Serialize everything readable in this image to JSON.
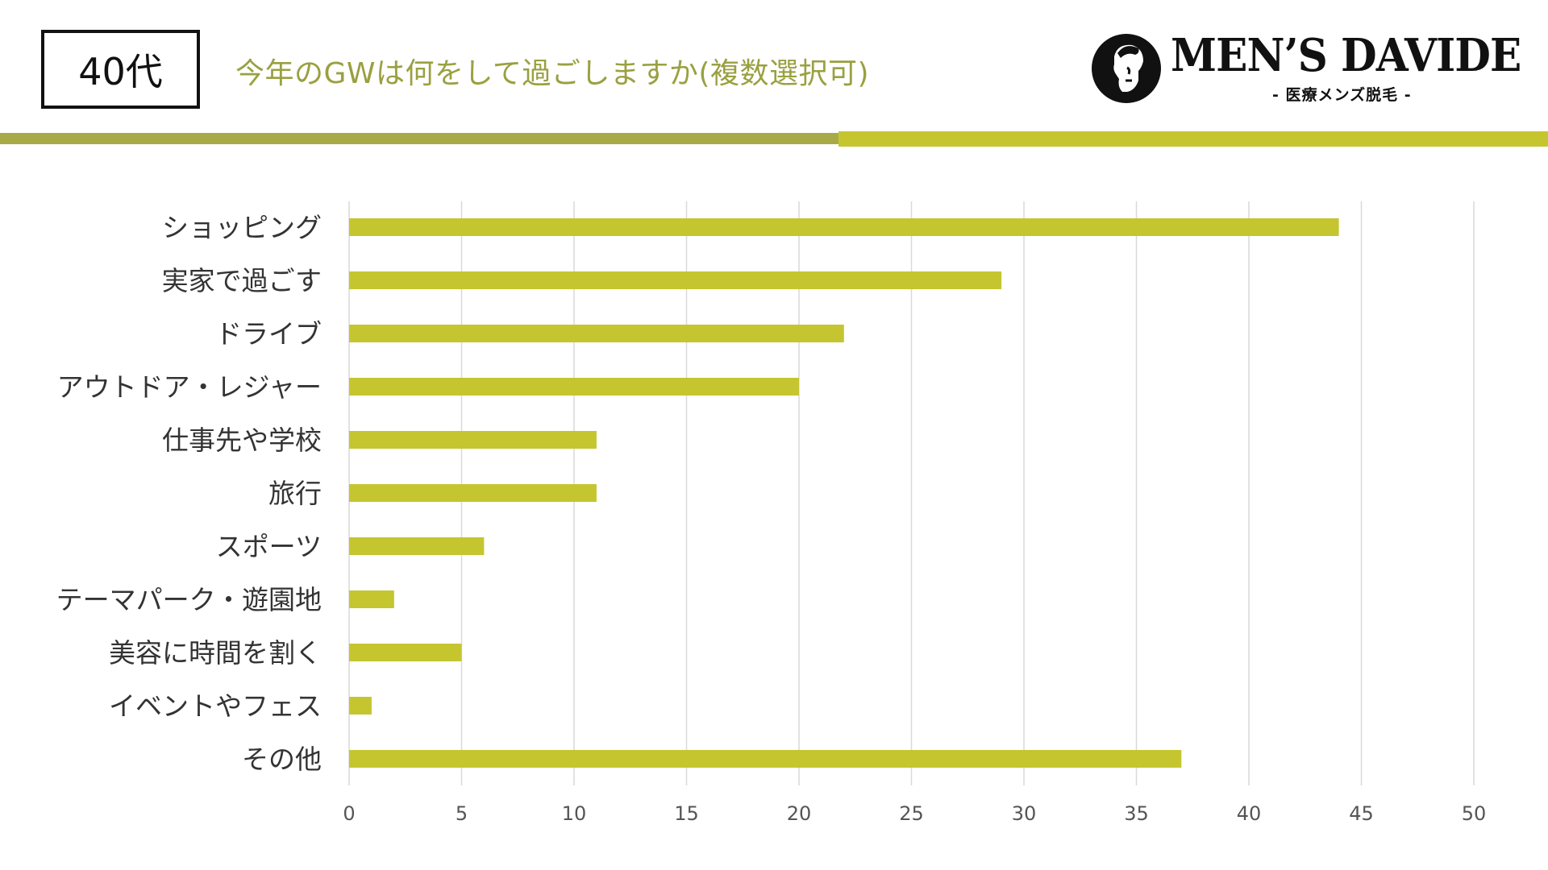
{
  "header": {
    "age_label": "40代",
    "title": "今年のGWは何をして過ごしますか(複数選択可)"
  },
  "logo": {
    "name": "MEN’S DAVIDE",
    "subtitle": "- 医療メンズ脱毛 -",
    "icon": "statue-head-icon"
  },
  "colors": {
    "bar": "#c5c530",
    "title": "#9aa040",
    "stripe_left": "#a8aa48",
    "stripe_right": "#c5c530",
    "grid": "#d9d9d9",
    "label": "#333333",
    "tick": "#555555"
  },
  "chart_data": {
    "type": "bar",
    "orientation": "horizontal",
    "categories": [
      "ショッピング",
      "実家で過ごす",
      "ドライブ",
      "アウトドア・レジャー",
      "仕事先や学校",
      "旅行",
      "スポーツ",
      "テーマパーク・遊園地",
      "美容に時間を割く",
      "イベントやフェス",
      "その他"
    ],
    "values": [
      44,
      29,
      22,
      20,
      11,
      11,
      6,
      2,
      5,
      1,
      37
    ],
    "xlim": [
      0,
      50
    ],
    "xticks": [
      "0",
      "5",
      "10",
      "15",
      "20",
      "25",
      "30",
      "35",
      "40",
      "45",
      "50"
    ],
    "title": "",
    "xlabel": "",
    "ylabel": "",
    "grid": true,
    "legend": "none"
  }
}
